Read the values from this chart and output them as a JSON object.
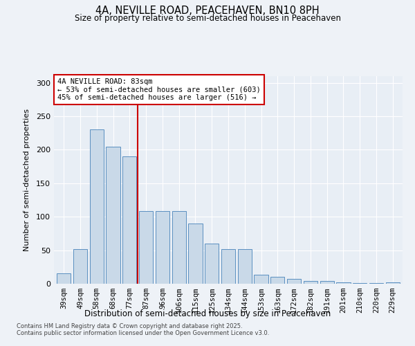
{
  "title1": "4A, NEVILLE ROAD, PEACEHAVEN, BN10 8PH",
  "title2": "Size of property relative to semi-detached houses in Peacehaven",
  "xlabel": "Distribution of semi-detached houses by size in Peacehaven",
  "ylabel": "Number of semi-detached properties",
  "categories": [
    "39sqm",
    "49sqm",
    "58sqm",
    "68sqm",
    "77sqm",
    "87sqm",
    "96sqm",
    "106sqm",
    "115sqm",
    "125sqm",
    "134sqm",
    "144sqm",
    "153sqm",
    "163sqm",
    "172sqm",
    "182sqm",
    "191sqm",
    "201sqm",
    "210sqm",
    "220sqm",
    "229sqm"
  ],
  "values": [
    16,
    52,
    230,
    205,
    190,
    108,
    108,
    108,
    90,
    60,
    52,
    52,
    13,
    10,
    7,
    4,
    4,
    2,
    1,
    1,
    2
  ],
  "bar_color": "#c9d9e8",
  "bar_edge_color": "#5a8fc0",
  "vline_x": 4.5,
  "vline_color": "#cc0000",
  "annotation_title": "4A NEVILLE ROAD: 83sqm",
  "annotation_line1": "← 53% of semi-detached houses are smaller (603)",
  "annotation_line2": "45% of semi-detached houses are larger (516) →",
  "annotation_box_color": "#cc0000",
  "ylim": [
    0,
    310
  ],
  "yticks": [
    0,
    50,
    100,
    150,
    200,
    250,
    300
  ],
  "footnote1": "Contains HM Land Registry data © Crown copyright and database right 2025.",
  "footnote2": "Contains public sector information licensed under the Open Government Licence v3.0.",
  "bg_color": "#eef2f7",
  "plot_bg_color": "#e8eef5"
}
